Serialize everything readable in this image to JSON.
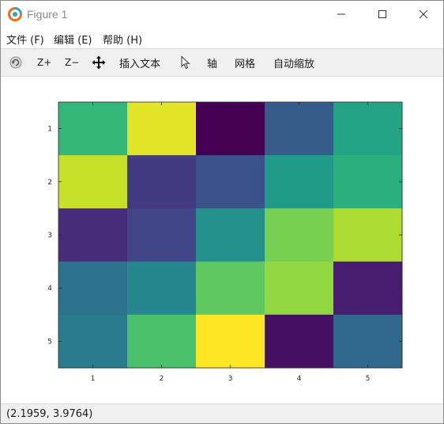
{
  "window": {
    "title": "Figure 1",
    "controls": [
      "minimize",
      "maximize",
      "close"
    ]
  },
  "menu": {
    "items": [
      {
        "label": "文件 (F)"
      },
      {
        "label": "编辑 (E)"
      },
      {
        "label": "帮助 (H)"
      }
    ]
  },
  "toolbar": {
    "rotate_icon": "rotate-icon",
    "zoom_in": "Z+",
    "zoom_out": "Z−",
    "pan_icon": "pan-icon",
    "insert_text": "插入文本",
    "select_icon": "pointer-icon",
    "axis": "轴",
    "grid": "网格",
    "autoscale": "自动缩放"
  },
  "chart_data": {
    "type": "heatmap",
    "x_ticks": [
      "1",
      "2",
      "3",
      "4",
      "5"
    ],
    "y_ticks": [
      "1",
      "2",
      "3",
      "4",
      "5"
    ],
    "values": [
      [
        17,
        24,
        1,
        8,
        15
      ],
      [
        23,
        5,
        7,
        14,
        16
      ],
      [
        4,
        6,
        13,
        20,
        22
      ],
      [
        10,
        12,
        19,
        21,
        3
      ],
      [
        11,
        18,
        25,
        2,
        9
      ]
    ],
    "colormap": "viridis",
    "clim": [
      1,
      25
    ],
    "colors": {
      "low": "#440154",
      "high": "#fde725"
    }
  },
  "status": {
    "text": "(2.1959, 3.9764)"
  }
}
